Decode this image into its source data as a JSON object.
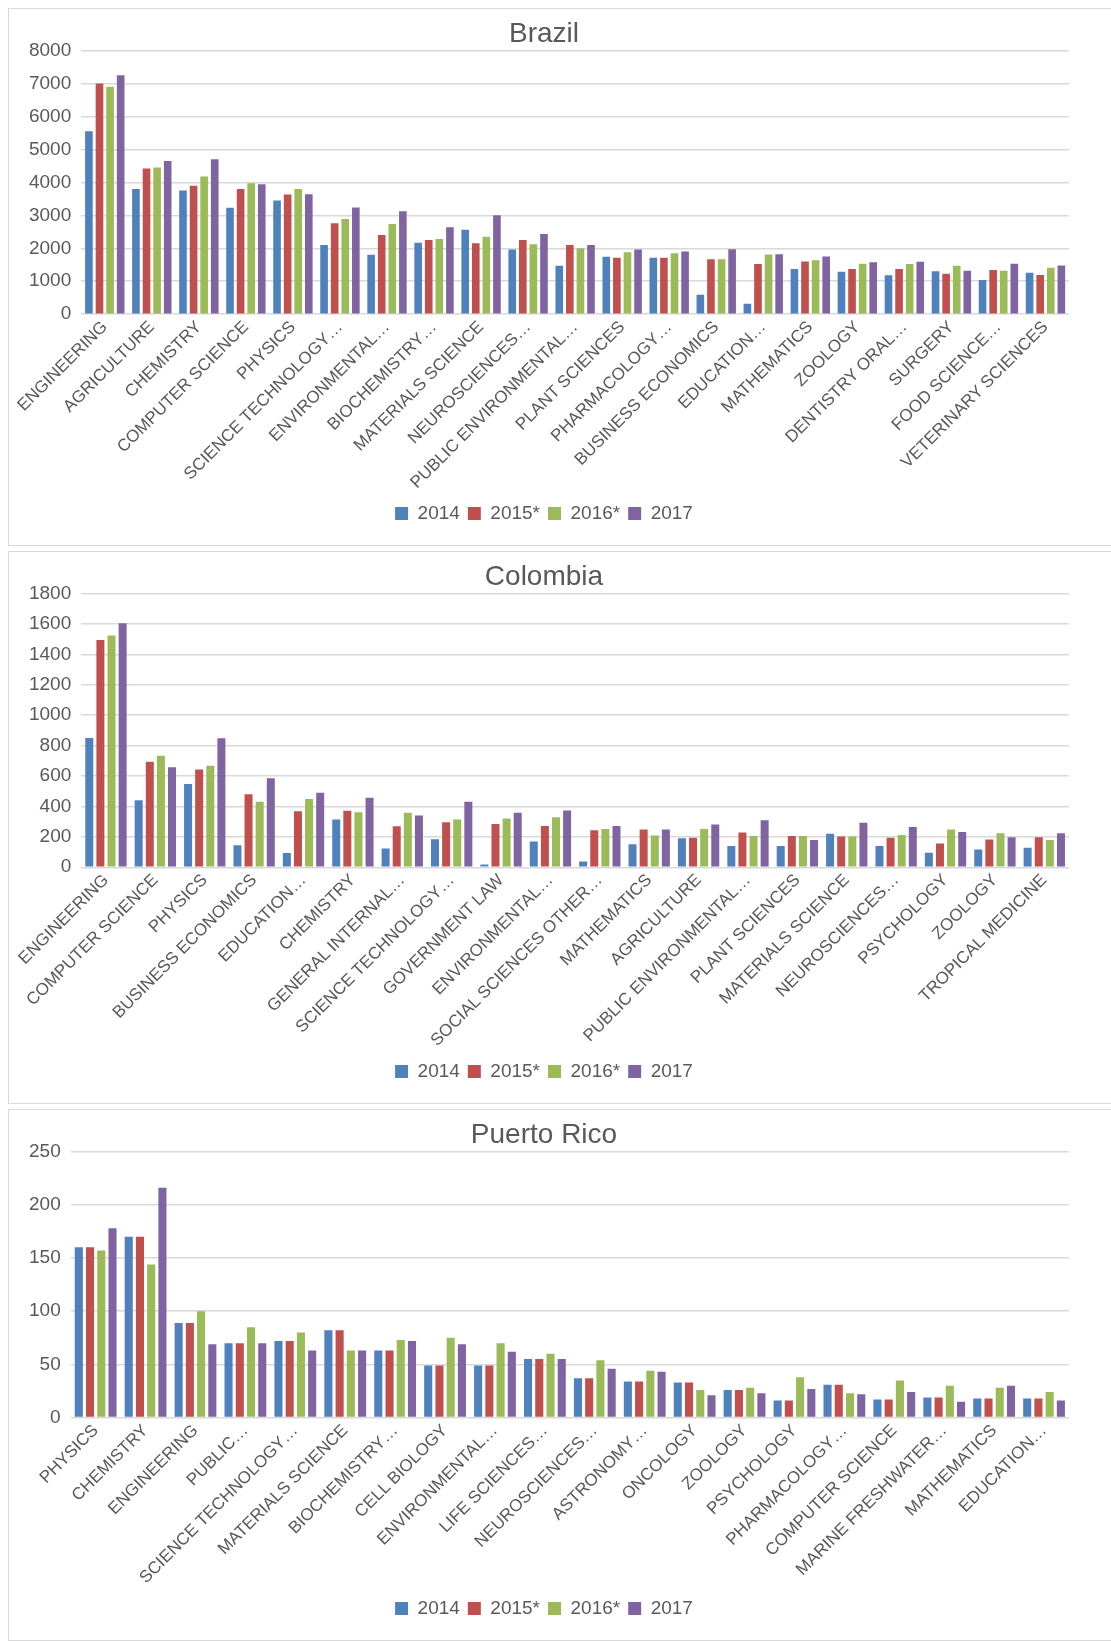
{
  "chart_data": [
    {
      "type": "bar",
      "title": "Brazil",
      "categories": [
        "ENGINEERING",
        "AGRICULTURE",
        "CHEMISTRY",
        "COMPUTER SCIENCE",
        "PHYSICS",
        "SCIENCE TECHNOLOGY…",
        "ENVIRONMENTAL…",
        "BIOCHEMISTRY…",
        "MATERIALS SCIENCE",
        "NEUROSCIENCES…",
        "PUBLIC ENVIRONMENTAL…",
        "PLANT SCIENCES",
        "PHARMACOLOGY…",
        "BUSINESS ECONOMICS",
        "EDUCATION…",
        "MATHEMATICS",
        "ZOOLOGY",
        "DENTISTRY ORAL…",
        "SURGERY",
        "FOOD SCIENCE…",
        "VETERINARY SCIENCES"
      ],
      "series": [
        {
          "name": "2014",
          "color": "#4f81bd",
          "values": [
            5550,
            3800,
            3750,
            3230,
            3450,
            2100,
            1800,
            2170,
            2560,
            1960,
            1470,
            1740,
            1710,
            590,
            315,
            1370,
            1290,
            1180,
            1300,
            1040,
            1260
          ]
        },
        {
          "name": "2015*",
          "color": "#c0504d",
          "values": [
            7000,
            4420,
            3900,
            3800,
            3630,
            2760,
            2400,
            2250,
            2150,
            2250,
            2100,
            1710,
            1710,
            1670,
            1520,
            1600,
            1370,
            1370,
            1230,
            1340,
            1190
          ]
        },
        {
          "name": "2016*",
          "color": "#9bbb59",
          "values": [
            6900,
            4450,
            4180,
            3970,
            3800,
            2890,
            2740,
            2280,
            2350,
            2120,
            2000,
            1880,
            1850,
            1670,
            1810,
            1640,
            1530,
            1520,
            1470,
            1315,
            1410
          ]
        },
        {
          "name": "2017",
          "color": "#8064a2",
          "values": [
            7250,
            4650,
            4700,
            3940,
            3640,
            3240,
            3120,
            2640,
            3000,
            2430,
            2100,
            1960,
            1900,
            1970,
            1820,
            1750,
            1575,
            1590,
            1315,
            1530,
            1480
          ]
        }
      ],
      "ylim": [
        0,
        8000
      ],
      "yticks": [
        0,
        1000,
        2000,
        3000,
        4000,
        5000,
        6000,
        7000,
        8000
      ],
      "grid": "y",
      "legend": "bottom"
    },
    {
      "type": "bar",
      "title": "Colombia",
      "categories": [
        "ENGINEERING",
        "COMPUTER SCIENCE",
        "PHYSICS",
        "BUSINESS ECONOMICS",
        "EDUCATION…",
        "CHEMISTRY",
        "GENERAL INTERNAL…",
        "SCIENCE TECHNOLOGY…",
        "GOVERNMENT LAW",
        "ENVIRONMENTAL…",
        "SOCIAL SCIENCES OTHER…",
        "MATHEMATICS",
        "AGRICULTURE",
        "PUBLIC ENVIRONMENTAL…",
        "PLANT SCIENCES",
        "MATERIALS SCIENCE",
        "NEUROSCIENCES…",
        "PSYCHOLOGY",
        "ZOOLOGY",
        "TROPICAL MEDICINE"
      ],
      "series": [
        {
          "name": "2014",
          "color": "#4f81bd",
          "values": [
            850,
            440,
            547,
            144,
            93,
            314,
            123,
            185,
            18,
            170,
            38,
            151,
            191,
            139,
            139,
            220,
            139,
            96,
            116,
            128
          ]
        },
        {
          "name": "2015*",
          "color": "#c0504d",
          "values": [
            1495,
            694,
            643,
            481,
            368,
            371,
            269,
            296,
            284,
            272,
            243,
            249,
            194,
            229,
            206,
            203,
            194,
            157,
            183,
            197
          ]
        },
        {
          "name": "2016*",
          "color": "#9bbb59",
          "values": [
            1525,
            733,
            667,
            431,
            449,
            362,
            359,
            314,
            320,
            329,
            252,
            209,
            252,
            206,
            206,
            203,
            212,
            249,
            223,
            180
          ]
        },
        {
          "name": "2017",
          "color": "#8064a2",
          "values": [
            1605,
            658,
            849,
            586,
            490,
            458,
            341,
            431,
            359,
            374,
            272,
            249,
            281,
            310,
            180,
            293,
            264,
            232,
            197,
            223
          ]
        }
      ],
      "ylim": [
        0,
        1800
      ],
      "yticks": [
        0,
        200,
        400,
        600,
        800,
        1000,
        1200,
        1400,
        1600,
        1800
      ],
      "grid": "y",
      "legend": "bottom"
    },
    {
      "type": "bar",
      "title": "Puerto Rico",
      "categories": [
        "PHYSICS",
        "CHEMISTRY",
        "ENGINEERING",
        "PUBLIC…",
        "SCIENCE TECHNOLOGY…",
        "MATERIALS SCIENCE",
        "BIOCHEMISTRY…",
        "CELL BIOLOGY",
        "ENVIRONMENTAL…",
        "LIFE SCIENCES…",
        "NEUROSCIENCES…",
        "ASTRONOMY…",
        "ONCOLOGY",
        "ZOOLOGY",
        "PSYCHOLOGY",
        "PHARMACOLOGY…",
        "COMPUTER SCIENCE",
        "MARINE FRESHWATER…",
        "MATHEMATICS",
        "EDUCATION…"
      ],
      "series": [
        {
          "name": "2014",
          "color": "#4f81bd",
          "values": [
            160,
            170,
            89,
            70,
            72,
            82,
            63,
            49,
            49,
            55,
            37,
            34,
            33,
            26,
            16,
            31,
            17,
            19,
            18,
            18
          ]
        },
        {
          "name": "2015*",
          "color": "#c0504d",
          "values": [
            160,
            170,
            89,
            70,
            72,
            82,
            63,
            49,
            49,
            55,
            37,
            34,
            33,
            26,
            16,
            31,
            17,
            19,
            18,
            18
          ]
        },
        {
          "name": "2016*",
          "color": "#9bbb59",
          "values": [
            157,
            144,
            100,
            85,
            80,
            63,
            73,
            75,
            70,
            60,
            54,
            44,
            26,
            28,
            38,
            23,
            35,
            30,
            28,
            24
          ]
        },
        {
          "name": "2017",
          "color": "#8064a2",
          "values": [
            178,
            216,
            69,
            70,
            63,
            63,
            72,
            69,
            62,
            55,
            46,
            43,
            21,
            23,
            27,
            22,
            24,
            15,
            30,
            16
          ]
        }
      ],
      "ylim": [
        0,
        250
      ],
      "yticks": [
        0,
        50,
        100,
        150,
        200,
        250
      ],
      "grid": "y",
      "legend": "bottom"
    }
  ]
}
